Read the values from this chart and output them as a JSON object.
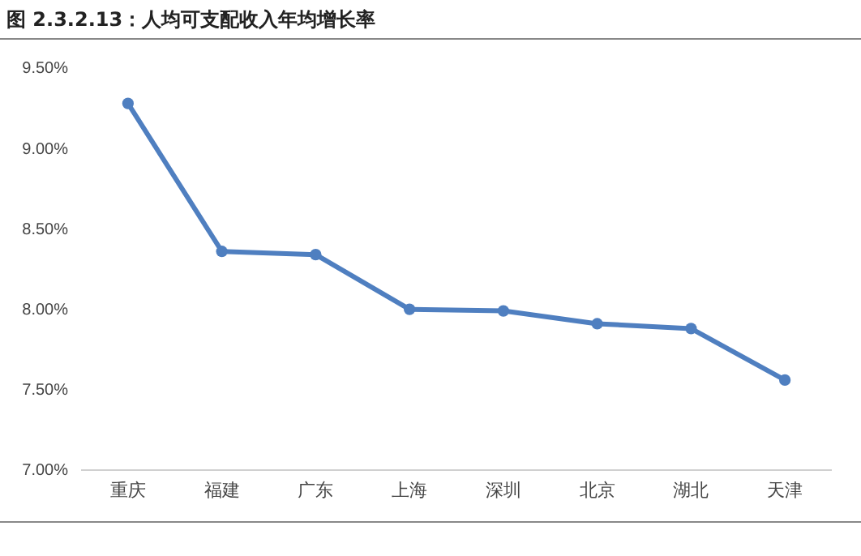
{
  "chart_data": {
    "type": "line",
    "title": "图 2.3.2.13：人均可支配收入年均增长率",
    "categories": [
      "重庆",
      "福建",
      "广东",
      "上海",
      "深圳",
      "北京",
      "湖北",
      "天津"
    ],
    "series": [
      {
        "color": "#4f7fc0",
        "values": [
          9.28,
          8.36,
          8.34,
          8.0,
          7.99,
          7.91,
          7.88,
          7.56
        ]
      }
    ],
    "ylim": [
      7,
      9.5
    ],
    "yticks": [
      {
        "value": 7,
        "label": "7.00%"
      },
      {
        "value": 7.5,
        "label": "7.50%"
      },
      {
        "value": 8,
        "label": "8.00%"
      },
      {
        "value": 8.5,
        "label": "8.50%"
      },
      {
        "value": 9,
        "label": "9.00%"
      },
      {
        "value": 9.5,
        "label": "9.50%"
      }
    ],
    "marker": "circle",
    "line_style": "solid"
  }
}
